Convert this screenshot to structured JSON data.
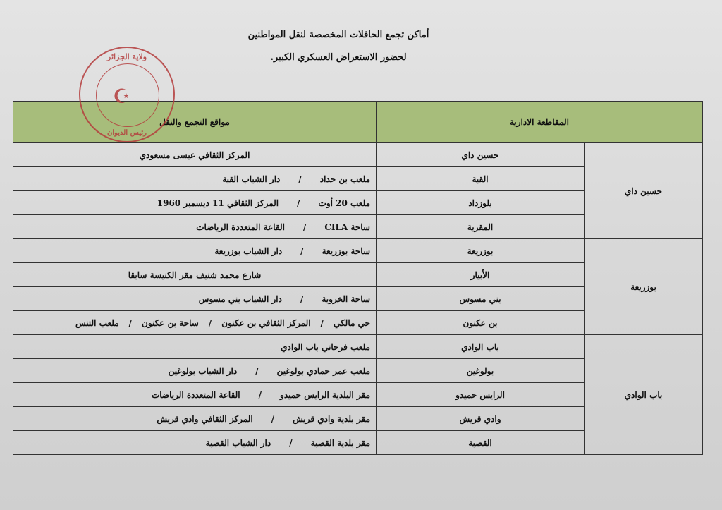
{
  "title": {
    "line1": "أماكن تجمع الحافلات المخصصة لنقل المواطنين",
    "line2": "لحضور الاستعراض العسكري الكبير."
  },
  "stamp": {
    "top": "ولاية الجزائر",
    "bottom": "رئيس الديوان"
  },
  "colors": {
    "header_bg": "#a7bd7b",
    "stamp": "#b43c3c"
  },
  "table": {
    "headers": {
      "district": "المقاطعة الادارية",
      "locations": "مواقع التجمع والنقل"
    },
    "groups": [
      {
        "district": "حسين داي",
        "rows": [
          {
            "municipality": "حسين داي",
            "locations": [
              "المركز الثقافي عيسى مسعودي"
            ]
          },
          {
            "municipality": "القبة",
            "locations": [
              "ملعب بن حداد",
              "دار الشباب القبة"
            ]
          },
          {
            "municipality": "بلوزداد",
            "locations": [
              "ملعب 20 أوت",
              "المركز الثقافي 11 ديسمبر 1960"
            ]
          },
          {
            "municipality": "المقرية",
            "locations": [
              "ساحة CILA",
              "القاعة المتعددة الرياضات"
            ]
          }
        ]
      },
      {
        "district": "بوزريعة",
        "rows": [
          {
            "municipality": "بوزريعة",
            "locations": [
              "ساحة بوزريعة",
              "دار الشباب بوزريعة"
            ]
          },
          {
            "municipality": "الأبيار",
            "locations": [
              "شارع محمد شنيف مقر الكنيسة سابقا"
            ]
          },
          {
            "municipality": "بني مسوس",
            "locations": [
              "ساحة الخروبة",
              "دار الشباب بني مسوس"
            ]
          },
          {
            "municipality": "بن عكنون",
            "locations": [
              "حي مالكي",
              "المركز الثقافي بن عكنون",
              "ساحة بن عكنون",
              "ملعب التنس"
            ]
          }
        ]
      },
      {
        "district": "باب الوادي",
        "rows": [
          {
            "municipality": "باب الوادي",
            "locations": [
              "ملعب فرحاني باب الوادي"
            ]
          },
          {
            "municipality": "بولوغين",
            "locations": [
              "ملعب عمر حمادي بولوغين",
              "دار الشباب بولوغين"
            ]
          },
          {
            "municipality": "الرايس حميدو",
            "locations": [
              "مقر البلدية الرايس حميدو",
              "القاعة المتعددة الرياضات"
            ]
          },
          {
            "municipality": "وادي قريش",
            "locations": [
              "مقر بلدية وادي قريش",
              "المركز الثقافي وادي قريش"
            ]
          },
          {
            "municipality": "القصبة",
            "locations": [
              "مقر بلدية القصبة",
              "دار الشباب القصبة"
            ]
          }
        ]
      }
    ]
  }
}
